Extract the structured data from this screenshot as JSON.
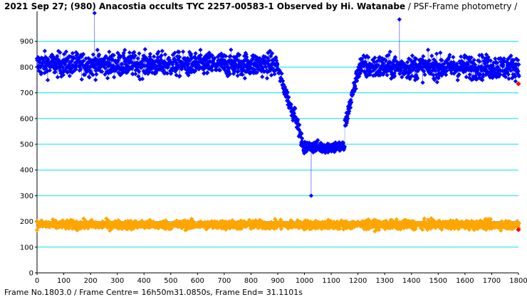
{
  "title_main": "2021 Sep 27; (980) Anacostia occults TYC 2257-00583-1 Observed by Hi. Watanabe",
  "title_suffix": " / PSF-Frame photometry /",
  "footer": "Frame No.1803.0 / Frame Centre= 16h50m31.0850s, Frame End= 31.1101s",
  "chart_data": {
    "type": "scatter",
    "title": "2021 Sep 27; (980) Anacostia occults TYC 2257-00583-1 Observed by Hi. Watanabe / PSF-Frame photometry /",
    "xlabel": "",
    "ylabel": "",
    "xlim": [
      0,
      1800
    ],
    "ylim": [
      0,
      1000
    ],
    "x_ticks": [
      0,
      100,
      200,
      300,
      400,
      500,
      600,
      700,
      800,
      900,
      1000,
      1100,
      1200,
      1300,
      1400,
      1500,
      1600,
      1700,
      1800
    ],
    "y_ticks": [
      0,
      100,
      200,
      300,
      400,
      500,
      600,
      700,
      800,
      900
    ],
    "grid_lines": [
      100,
      200,
      300,
      400,
      500,
      600,
      700,
      800,
      900
    ],
    "frames": 1803,
    "series": [
      {
        "color": "#0000ff",
        "connected": true,
        "segments": [
          {
            "x_start": 0,
            "x_end": 900,
            "level": 810,
            "scatter": 60
          },
          {
            "x_start": 900,
            "x_end": 960,
            "level_start": 790,
            "level_end": 610,
            "scatter": 35
          },
          {
            "x_start": 960,
            "x_end": 1000,
            "level_start": 640,
            "level_end": 470,
            "scatter": 30
          },
          {
            "x_start": 1000,
            "x_end": 1150,
            "level": 490,
            "scatter": 30
          },
          {
            "x_start": 1150,
            "x_end": 1200,
            "level_start": 570,
            "level_end": 780,
            "scatter": 40
          },
          {
            "x_start": 1200,
            "x_end": 1803,
            "level": 800,
            "scatter": 60
          }
        ],
        "notable_points": [
          {
            "x": 215,
            "y": 1010
          },
          {
            "x": 1025,
            "y": 300
          },
          {
            "x": 1355,
            "y": 985
          }
        ]
      },
      {
        "color": "#ffa500",
        "connected": true,
        "segments": [
          {
            "x_start": 0,
            "x_end": 1803,
            "level": 187,
            "scatter": 22
          }
        ]
      }
    ],
    "end_markers": [
      {
        "x": 1803,
        "y": 735,
        "color": "#ff0000"
      },
      {
        "x": 1803,
        "y": 168,
        "color": "#ff0000"
      }
    ]
  }
}
